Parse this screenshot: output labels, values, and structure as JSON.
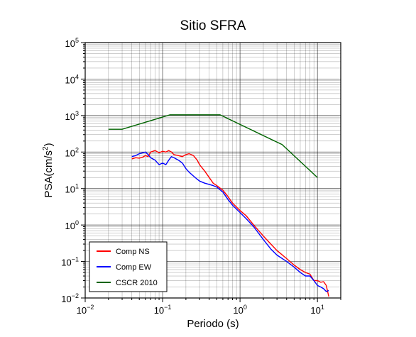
{
  "chart_data": {
    "type": "line",
    "title": "Sitio SFRA",
    "xlabel": "Periodo (s)",
    "ylabel": "PSA(cm/s²)",
    "ylabel_base": "PSA(cm/s",
    "ylabel_sup": "2",
    "ylabel_end": ")",
    "x_scale": "log",
    "y_scale": "log",
    "xlim": [
      0.01,
      20
    ],
    "ylim": [
      0.01,
      100000
    ],
    "grid": true,
    "legend_position": "bottom-left",
    "x_ticks": [
      {
        "base": "10",
        "exp": "−2"
      },
      {
        "base": "10",
        "exp": "−1"
      },
      {
        "base": "10",
        "exp": "0"
      },
      {
        "base": "10",
        "exp": "1"
      }
    ],
    "y_ticks": [
      {
        "base": "10",
        "exp": "−2"
      },
      {
        "base": "10",
        "exp": "−1"
      },
      {
        "base": "10",
        "exp": "0"
      },
      {
        "base": "10",
        "exp": "1"
      },
      {
        "base": "10",
        "exp": "2"
      },
      {
        "base": "10",
        "exp": "3"
      },
      {
        "base": "10",
        "exp": "4"
      },
      {
        "base": "10",
        "exp": "5"
      }
    ],
    "series": [
      {
        "name": "Comp NS",
        "color": "#ff0000",
        "x": [
          0.04,
          0.045,
          0.05,
          0.055,
          0.06,
          0.065,
          0.07,
          0.08,
          0.09,
          0.1,
          0.11,
          0.12,
          0.13,
          0.14,
          0.16,
          0.18,
          0.2,
          0.22,
          0.25,
          0.28,
          0.3,
          0.35,
          0.4,
          0.45,
          0.5,
          0.6,
          0.7,
          0.8,
          1.0,
          1.2,
          1.5,
          2.0,
          2.5,
          3.0,
          4.0,
          5.0,
          6.0,
          7.0,
          8.0,
          9.0,
          10.0,
          11.0,
          12.0,
          13.0,
          14.0
        ],
        "y": [
          65,
          70,
          68,
          72,
          80,
          75,
          100,
          110,
          95,
          105,
          100,
          110,
          100,
          85,
          80,
          75,
          85,
          90,
          80,
          60,
          45,
          30,
          20,
          14,
          12,
          9,
          6,
          4,
          2.5,
          1.8,
          1.0,
          0.5,
          0.3,
          0.2,
          0.12,
          0.08,
          0.06,
          0.05,
          0.045,
          0.03,
          0.03,
          0.027,
          0.028,
          0.022,
          0.011
        ]
      },
      {
        "name": "Comp EW",
        "color": "#0000ff",
        "x": [
          0.04,
          0.045,
          0.05,
          0.055,
          0.06,
          0.065,
          0.07,
          0.08,
          0.09,
          0.1,
          0.11,
          0.12,
          0.13,
          0.14,
          0.16,
          0.18,
          0.2,
          0.22,
          0.25,
          0.28,
          0.3,
          0.35,
          0.4,
          0.45,
          0.5,
          0.6,
          0.7,
          0.8,
          1.0,
          1.2,
          1.5,
          2.0,
          2.5,
          3.0,
          4.0,
          5.0,
          6.0,
          7.0,
          8.0,
          9.0,
          10.0,
          11.0,
          12.0,
          13.0,
          14.0
        ],
        "y": [
          75,
          80,
          90,
          95,
          100,
          85,
          70,
          60,
          45,
          50,
          45,
          60,
          75,
          70,
          60,
          50,
          35,
          28,
          22,
          18,
          16,
          14,
          13,
          12,
          11,
          8,
          5,
          3.5,
          2.2,
          1.5,
          0.9,
          0.4,
          0.22,
          0.15,
          0.1,
          0.07,
          0.05,
          0.04,
          0.04,
          0.03,
          0.022,
          0.02,
          0.018,
          0.015,
          0.016
        ]
      },
      {
        "name": "CSCR 2010",
        "color": "#006400",
        "x": [
          0.02,
          0.03,
          0.125,
          0.55,
          3.5,
          10
        ],
        "y": [
          420,
          420,
          1050,
          1050,
          160,
          20
        ]
      }
    ]
  }
}
